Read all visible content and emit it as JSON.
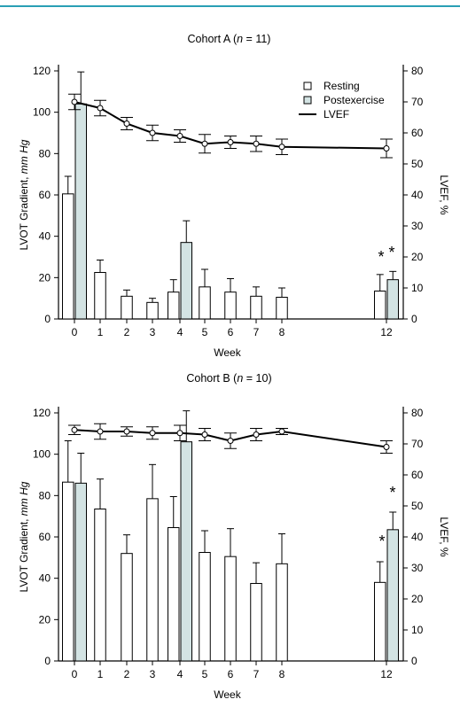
{
  "colors": {
    "top_rule": "#2a9fb5",
    "postexercise_fill": "#d3e3e3",
    "resting_fill": "#ffffff",
    "lvef_line": "#000000"
  },
  "legend": {
    "resting": "Resting",
    "postexercise": "Postexercise",
    "lvef": "LVEF"
  },
  "chart_data": [
    {
      "type": "bar",
      "title": "Cohort A (n = 11)",
      "title_parts": {
        "prefix": "Cohort A (",
        "n": "n",
        "suffix": " = 11)"
      },
      "xlabel": "Week",
      "ylabel": "LVOT Gradient, mm Hg",
      "ylabel_parts": {
        "main": "LVOT Gradient, ",
        "unit": "mm Hg"
      },
      "y2label": "LVEF, %",
      "ylim": [
        0,
        120
      ],
      "y2lim": [
        0,
        80
      ],
      "yticks": [
        "0",
        "20",
        "40",
        "60",
        "80",
        "100",
        "120"
      ],
      "y2ticks": [
        "0",
        "10",
        "20",
        "30",
        "40",
        "50",
        "60",
        "70",
        "80"
      ],
      "categories": [
        "0",
        "1",
        "2",
        "3",
        "4",
        "5",
        "6",
        "7",
        "8",
        "12"
      ],
      "series": [
        {
          "name": "Resting",
          "values": [
            60.5,
            22.5,
            11,
            8,
            13,
            15.5,
            13,
            11,
            10.5,
            13.5
          ],
          "err": [
            8.5,
            6,
            3,
            2,
            6,
            8.5,
            6.5,
            4.5,
            4.5,
            8
          ]
        },
        {
          "name": "Postexercise",
          "values": [
            104,
            null,
            null,
            null,
            37,
            null,
            null,
            null,
            null,
            19
          ],
          "err": [
            15.5,
            null,
            null,
            null,
            10.5,
            null,
            null,
            null,
            null,
            4
          ]
        },
        {
          "name": "LVEF",
          "values": [
            70,
            68,
            63,
            60,
            59,
            56.5,
            57,
            56.5,
            55.5,
            55
          ],
          "err": [
            2.5,
            2.5,
            2,
            2.5,
            2,
            3,
            2,
            2.5,
            2.5,
            3
          ]
        }
      ],
      "annotations": [
        "*",
        "*"
      ]
    },
    {
      "type": "bar",
      "title": "Cohort B (n = 10)",
      "title_parts": {
        "prefix": "Cohort B (",
        "n": "n",
        "suffix": " = 10)"
      },
      "xlabel": "Week",
      "ylabel": "LVOT Gradient, mm Hg",
      "ylabel_parts": {
        "main": "LVOT Gradient, ",
        "unit": "mm Hg"
      },
      "y2label": "LVEF, %",
      "ylim": [
        0,
        120
      ],
      "y2lim": [
        0,
        80
      ],
      "yticks": [
        "0",
        "20",
        "40",
        "60",
        "80",
        "100",
        "120"
      ],
      "y2ticks": [
        "0",
        "10",
        "20",
        "30",
        "40",
        "50",
        "60",
        "70",
        "80"
      ],
      "categories": [
        "0",
        "1",
        "2",
        "3",
        "4",
        "5",
        "6",
        "7",
        "8",
        "12"
      ],
      "series": [
        {
          "name": "Resting",
          "values": [
            86.5,
            73.5,
            52,
            78.5,
            64.5,
            52.5,
            50.5,
            37.5,
            47,
            38
          ],
          "err": [
            20,
            14.5,
            9,
            16.5,
            15,
            10.5,
            13.5,
            10,
            14.5,
            10
          ]
        },
        {
          "name": "Postexercise",
          "values": [
            86,
            null,
            null,
            null,
            106,
            null,
            null,
            null,
            null,
            63.5
          ],
          "err": [
            14.5,
            null,
            null,
            null,
            15,
            null,
            null,
            null,
            null,
            8.5
          ]
        },
        {
          "name": "LVEF",
          "values": [
            74.5,
            74,
            74,
            73.5,
            73.5,
            73,
            71,
            73,
            74,
            69
          ],
          "err": [
            1.5,
            2.5,
            1.5,
            2,
            2.5,
            2,
            2.5,
            2,
            1,
            2
          ]
        }
      ],
      "annotations": [
        "*",
        "*"
      ]
    }
  ]
}
